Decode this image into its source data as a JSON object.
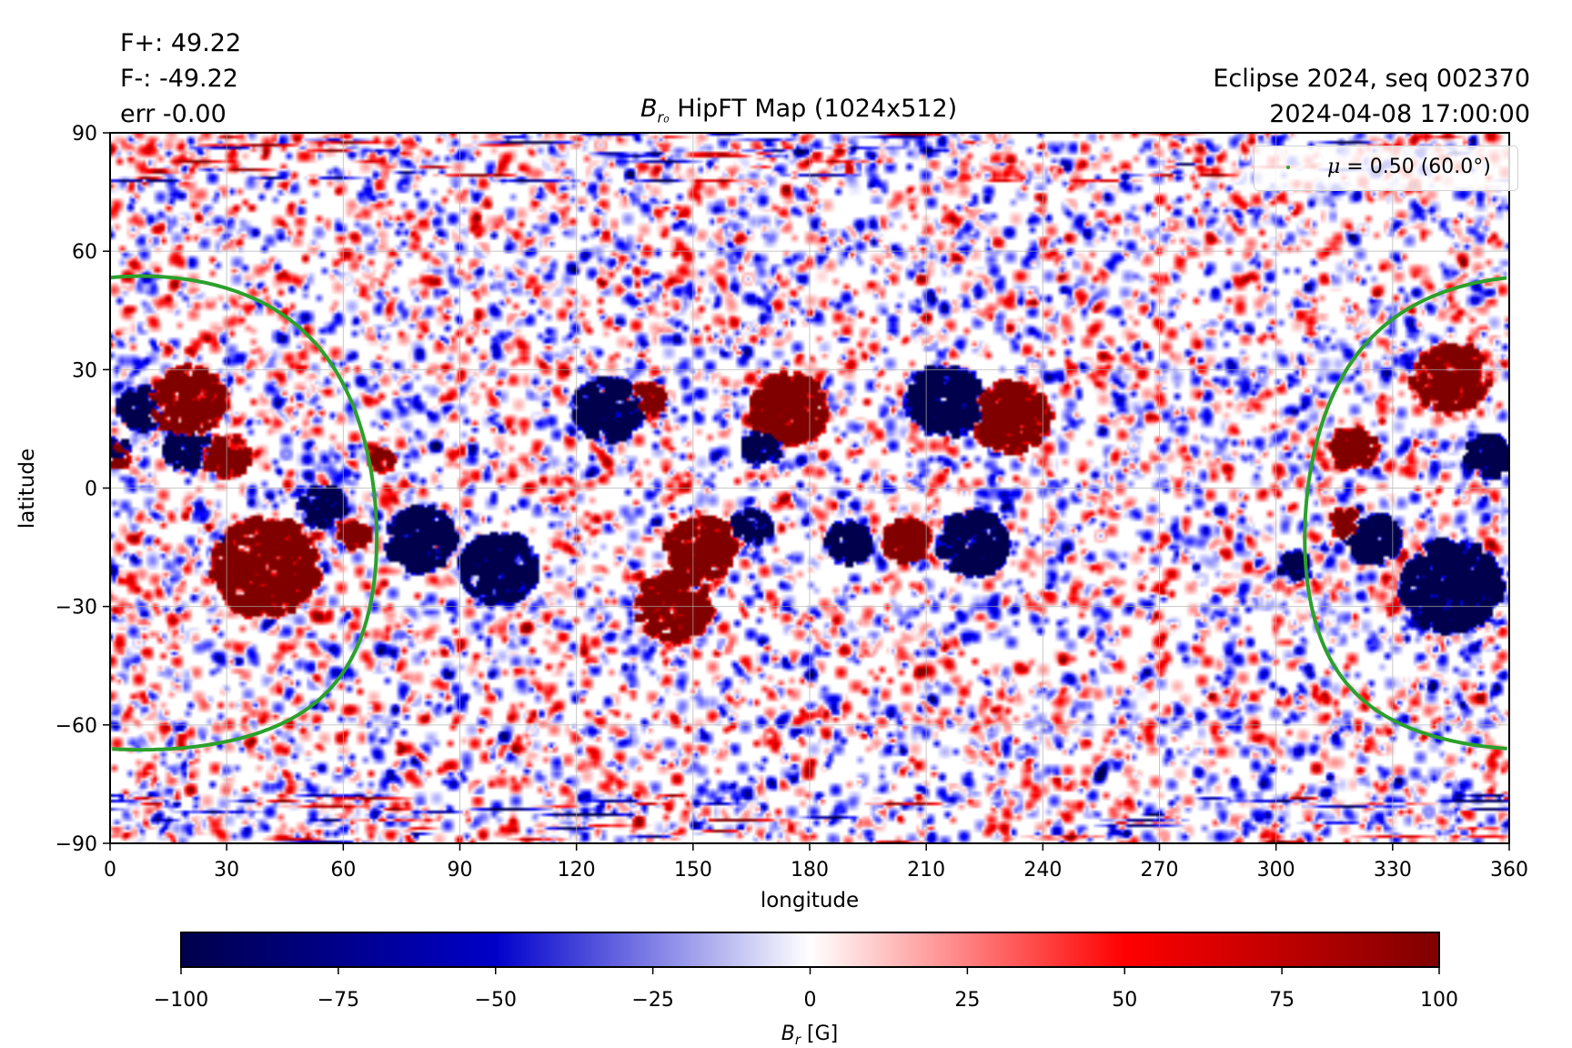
{
  "header": {
    "flux_positive": "F+: 49.22",
    "flux_negative": "F-: -49.22",
    "error": "err -0.00",
    "title_symbol": "B",
    "title_subscript": "r₀",
    "title_text": " HipFT Map (1024x512)",
    "run_name": "Eclipse 2024, seq 002370",
    "timestamp": "2024-04-08 17:00:00"
  },
  "chart_data": {
    "type": "heatmap",
    "title": "B_r0 HipFT Map (1024x512)",
    "xlabel": "longitude",
    "ylabel": "latitude",
    "xlim": [
      0,
      360
    ],
    "ylim": [
      -90,
      90
    ],
    "xticks": [
      0,
      30,
      60,
      90,
      120,
      150,
      180,
      210,
      240,
      270,
      300,
      330,
      360
    ],
    "yticks": [
      -90,
      -60,
      -30,
      0,
      30,
      60,
      90
    ],
    "grid": true,
    "grid_color": "#b0b0b0",
    "colormap": "seismic",
    "colorbar": {
      "label_symbol": "B",
      "label_subscript": "r",
      "label_unit": " [G]",
      "vmin": -100,
      "vmax": 100,
      "ticks": [
        -100,
        -75,
        -50,
        -25,
        0,
        25,
        50,
        75,
        100
      ],
      "tick_labels": [
        "−100",
        "−75",
        "−50",
        "−25",
        "0",
        "25",
        "50",
        "75",
        "100"
      ],
      "orientation": "horizontal",
      "placement": "bottom"
    },
    "legend": {
      "placement": "top-right",
      "entries": [
        {
          "label": "μ = 0.50 (60.0°)",
          "mu_symbol": "μ",
          "mu_text": " = 0.50 (60.0°)",
          "color": "#2ca02c",
          "marker": "dot"
        }
      ]
    },
    "mu_contour": {
      "mu": 0.5,
      "angle_deg": 60.0,
      "center_lon": 8,
      "center_lat": -6.3,
      "color": "#2ca02c"
    },
    "active_regions": [
      {
        "lon": 20,
        "lat": 22,
        "polarity": "positive",
        "strength": 80,
        "size": 10
      },
      {
        "lon": 8,
        "lat": 20,
        "polarity": "negative",
        "strength": 90,
        "size": 6
      },
      {
        "lon": 2,
        "lat": 8,
        "polarity": "positive",
        "strength": 100,
        "size": 3
      },
      {
        "lon": 2,
        "lat": 10,
        "polarity": "negative",
        "strength": 100,
        "size": 3
      },
      {
        "lon": 30,
        "lat": 8,
        "polarity": "positive",
        "strength": 70,
        "size": 6
      },
      {
        "lon": 20,
        "lat": 10,
        "polarity": "negative",
        "strength": 70,
        "size": 6
      },
      {
        "lon": 40,
        "lat": -20,
        "polarity": "positive",
        "strength": 75,
        "size": 14
      },
      {
        "lon": 55,
        "lat": -5,
        "polarity": "negative",
        "strength": 60,
        "size": 6
      },
      {
        "lon": 63,
        "lat": -12,
        "polarity": "positive",
        "strength": 85,
        "size": 4
      },
      {
        "lon": 80,
        "lat": -13,
        "polarity": "negative",
        "strength": 95,
        "size": 9
      },
      {
        "lon": 100,
        "lat": -20,
        "polarity": "negative",
        "strength": 70,
        "size": 10
      },
      {
        "lon": 70,
        "lat": 7,
        "polarity": "positive",
        "strength": 90,
        "size": 3
      },
      {
        "lon": 128,
        "lat": 20,
        "polarity": "negative",
        "strength": 85,
        "size": 9
      },
      {
        "lon": 138,
        "lat": 22,
        "polarity": "positive",
        "strength": 85,
        "size": 5
      },
      {
        "lon": 175,
        "lat": 20,
        "polarity": "positive",
        "strength": 85,
        "size": 10
      },
      {
        "lon": 168,
        "lat": 10,
        "polarity": "negative",
        "strength": 80,
        "size": 5
      },
      {
        "lon": 152,
        "lat": -15,
        "polarity": "positive",
        "strength": 80,
        "size": 9
      },
      {
        "lon": 165,
        "lat": -10,
        "polarity": "negative",
        "strength": 70,
        "size": 5
      },
      {
        "lon": 145,
        "lat": -30,
        "polarity": "positive",
        "strength": 65,
        "size": 10
      },
      {
        "lon": 215,
        "lat": 22,
        "polarity": "negative",
        "strength": 100,
        "size": 10
      },
      {
        "lon": 232,
        "lat": 18,
        "polarity": "positive",
        "strength": 100,
        "size": 10
      },
      {
        "lon": 205,
        "lat": -13,
        "polarity": "positive",
        "strength": 100,
        "size": 6
      },
      {
        "lon": 222,
        "lat": -14,
        "polarity": "negative",
        "strength": 100,
        "size": 9
      },
      {
        "lon": 190,
        "lat": -14,
        "polarity": "negative",
        "strength": 80,
        "size": 6
      },
      {
        "lon": 320,
        "lat": 10,
        "polarity": "positive",
        "strength": 80,
        "size": 6
      },
      {
        "lon": 318,
        "lat": -9,
        "polarity": "positive",
        "strength": 100,
        "size": 4
      },
      {
        "lon": 325,
        "lat": -13,
        "polarity": "negative",
        "strength": 95,
        "size": 7
      },
      {
        "lon": 345,
        "lat": -25,
        "polarity": "negative",
        "strength": 85,
        "size": 13
      },
      {
        "lon": 355,
        "lat": 8,
        "polarity": "negative",
        "strength": 100,
        "size": 6
      },
      {
        "lon": 305,
        "lat": -20,
        "polarity": "negative",
        "strength": 70,
        "size": 4
      },
      {
        "lon": 345,
        "lat": 28,
        "polarity": "positive",
        "strength": 60,
        "size": 10
      }
    ]
  }
}
